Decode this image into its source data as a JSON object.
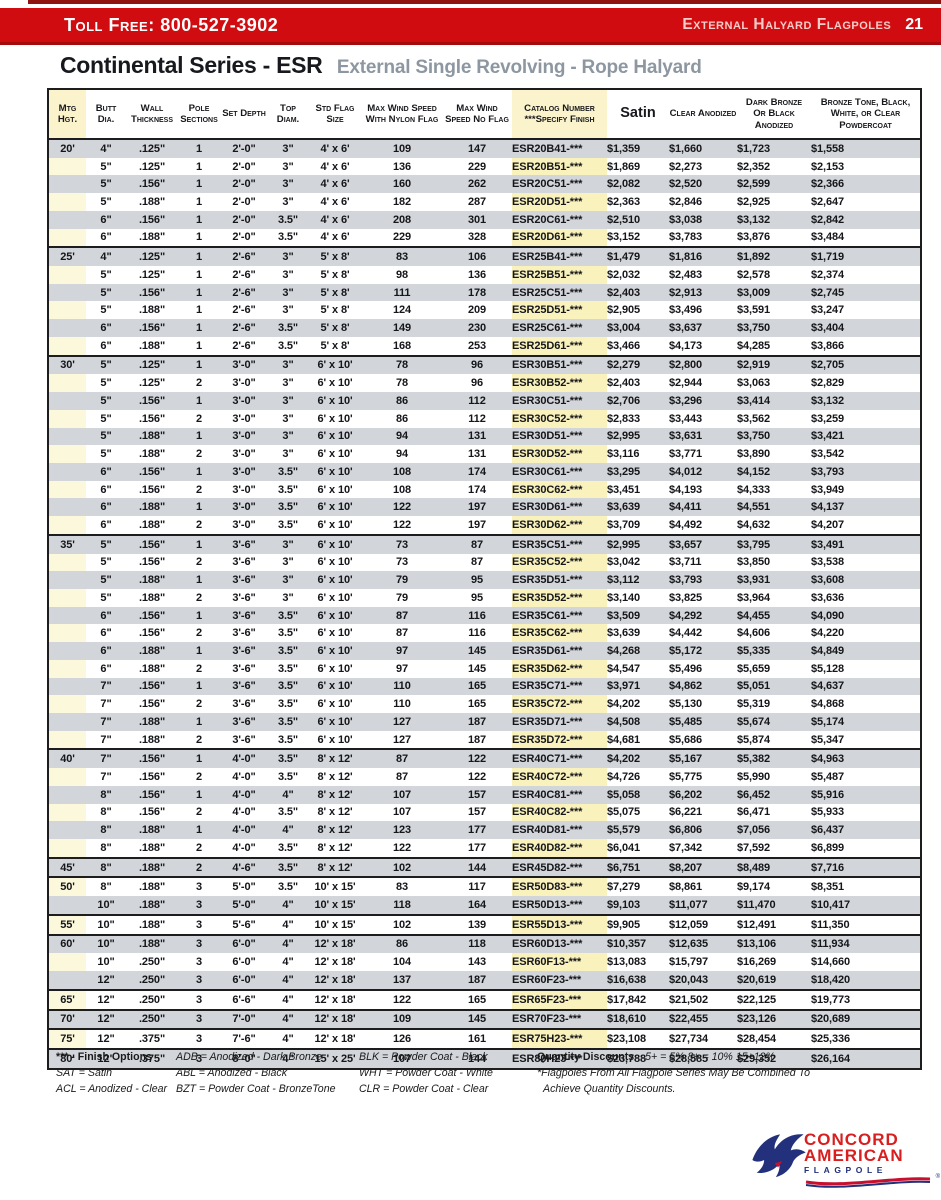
{
  "header_bar": {
    "toll_free": "Toll Free: 800-527-3902",
    "section_label": "External Halyard Flagpoles",
    "page_number": "21"
  },
  "title": {
    "main": "Continental Series - ESR",
    "subtitle": "External Single Revolving - Rope Halyard"
  },
  "colors": {
    "bar_red": "#d00c10",
    "row_gray": "#d2d5d9",
    "mtg_yellow": "#fcf8db",
    "catalog_yellow": "#faf2bc",
    "header_yellow": "#fbf3cc",
    "logo_red": "#d81e1e",
    "logo_navy": "#23307c"
  },
  "table": {
    "columns": [
      {
        "id": "mtg",
        "lines": [
          "Mtg",
          "Hgt."
        ],
        "highlight": true
      },
      {
        "id": "butt",
        "lines": [
          "Butt",
          "Dia."
        ]
      },
      {
        "id": "wall",
        "lines": [
          "Wall",
          "Thickness"
        ]
      },
      {
        "id": "pole",
        "lines": [
          "Pole",
          "Sections"
        ]
      },
      {
        "id": "depth",
        "lines": [
          "Set Depth"
        ]
      },
      {
        "id": "top",
        "lines": [
          "Top",
          "Diam."
        ]
      },
      {
        "id": "flag",
        "lines": [
          "Std Flag",
          "Size"
        ]
      },
      {
        "id": "wind_nylon",
        "lines": [
          "Max Wind Speed",
          "With Nylon Flag"
        ]
      },
      {
        "id": "wind_noflag",
        "lines": [
          "Max Wind",
          "Speed No Flag"
        ]
      },
      {
        "id": "catalog",
        "lines": [
          "Catalog Number",
          "***Specify Finish"
        ],
        "highlight": true
      },
      {
        "id": "satin",
        "lines": [
          "Satin"
        ],
        "big": true
      },
      {
        "id": "clear",
        "lines": [
          "Clear Anodized"
        ]
      },
      {
        "id": "dark",
        "lines": [
          "Dark Bronze",
          "Or Black",
          "Anodized"
        ]
      },
      {
        "id": "powder",
        "lines": [
          "Bronze Tone, Black,",
          "White, or Clear",
          "Powdercoat"
        ]
      }
    ],
    "sections": [
      {
        "height": "20'",
        "rows": [
          [
            "4\"",
            ".125\"",
            "1",
            "2'-0\"",
            "3\"",
            "4' x 6'",
            "109",
            "147",
            "ESR20B41-***",
            "$1,359",
            "$1,660",
            "$1,723",
            "$1,558"
          ],
          [
            "5\"",
            ".125\"",
            "1",
            "2'-0\"",
            "3\"",
            "4' x 6'",
            "136",
            "229",
            "ESR20B51-***",
            "$1,869",
            "$2,273",
            "$2,352",
            "$2,153"
          ],
          [
            "5\"",
            ".156\"",
            "1",
            "2'-0\"",
            "3\"",
            "4' x 6'",
            "160",
            "262",
            "ESR20C51-***",
            "$2,082",
            "$2,520",
            "$2,599",
            "$2,366"
          ],
          [
            "5\"",
            ".188\"",
            "1",
            "2'-0\"",
            "3\"",
            "4' x 6'",
            "182",
            "287",
            "ESR20D51-***",
            "$2,363",
            "$2,846",
            "$2,925",
            "$2,647"
          ],
          [
            "6\"",
            ".156\"",
            "1",
            "2'-0\"",
            "3.5\"",
            "4' x 6'",
            "208",
            "301",
            "ESR20C61-***",
            "$2,510",
            "$3,038",
            "$3,132",
            "$2,842"
          ],
          [
            "6\"",
            ".188\"",
            "1",
            "2'-0\"",
            "3.5\"",
            "4' x 6'",
            "229",
            "328",
            "ESR20D61-***",
            "$3,152",
            "$3,783",
            "$3,876",
            "$3,484"
          ]
        ]
      },
      {
        "height": "25'",
        "rows": [
          [
            "4\"",
            ".125\"",
            "1",
            "2'-6\"",
            "3\"",
            "5' x 8'",
            "83",
            "106",
            "ESR25B41-***",
            "$1,479",
            "$1,816",
            "$1,892",
            "$1,719"
          ],
          [
            "5\"",
            ".125\"",
            "1",
            "2'-6\"",
            "3\"",
            "5' x 8'",
            "98",
            "136",
            "ESR25B51-***",
            "$2,032",
            "$2,483",
            "$2,578",
            "$2,374"
          ],
          [
            "5\"",
            ".156\"",
            "1",
            "2'-6\"",
            "3\"",
            "5' x 8'",
            "111",
            "178",
            "ESR25C51-***",
            "$2,403",
            "$2,913",
            "$3,009",
            "$2,745"
          ],
          [
            "5\"",
            ".188\"",
            "1",
            "2'-6\"",
            "3\"",
            "5' x 8'",
            "124",
            "209",
            "ESR25D51-***",
            "$2,905",
            "$3,496",
            "$3,591",
            "$3,247"
          ],
          [
            "6\"",
            ".156\"",
            "1",
            "2'-6\"",
            "3.5\"",
            "5' x 8'",
            "149",
            "230",
            "ESR25C61-***",
            "$3,004",
            "$3,637",
            "$3,750",
            "$3,404"
          ],
          [
            "6\"",
            ".188\"",
            "1",
            "2'-6\"",
            "3.5\"",
            "5' x 8'",
            "168",
            "253",
            "ESR25D61-***",
            "$3,466",
            "$4,173",
            "$4,285",
            "$3,866"
          ]
        ]
      },
      {
        "height": "30'",
        "rows": [
          [
            "5\"",
            ".125\"",
            "1",
            "3'-0\"",
            "3\"",
            "6' x 10'",
            "78",
            "96",
            "ESR30B51-***",
            "$2,279",
            "$2,800",
            "$2,919",
            "$2,705"
          ],
          [
            "5\"",
            ".125\"",
            "2",
            "3'-0\"",
            "3\"",
            "6' x 10'",
            "78",
            "96",
            "ESR30B52-***",
            "$2,403",
            "$2,944",
            "$3,063",
            "$2,829"
          ],
          [
            "5\"",
            ".156\"",
            "1",
            "3'-0\"",
            "3\"",
            "6' x 10'",
            "86",
            "112",
            "ESR30C51-***",
            "$2,706",
            "$3,296",
            "$3,414",
            "$3,132"
          ],
          [
            "5\"",
            ".156\"",
            "2",
            "3'-0\"",
            "3\"",
            "6' x 10'",
            "86",
            "112",
            "ESR30C52-***",
            "$2,833",
            "$3,443",
            "$3,562",
            "$3,259"
          ],
          [
            "5\"",
            ".188\"",
            "1",
            "3'-0\"",
            "3\"",
            "6' x 10'",
            "94",
            "131",
            "ESR30D51-***",
            "$2,995",
            "$3,631",
            "$3,750",
            "$3,421"
          ],
          [
            "5\"",
            ".188\"",
            "2",
            "3'-0\"",
            "3\"",
            "6' x 10'",
            "94",
            "131",
            "ESR30D52-***",
            "$3,116",
            "$3,771",
            "$3,890",
            "$3,542"
          ],
          [
            "6\"",
            ".156\"",
            "1",
            "3'-0\"",
            "3.5\"",
            "6' x 10'",
            "108",
            "174",
            "ESR30C61-***",
            "$3,295",
            "$4,012",
            "$4,152",
            "$3,793"
          ],
          [
            "6\"",
            ".156\"",
            "2",
            "3'-0\"",
            "3.5\"",
            "6' x 10'",
            "108",
            "174",
            "ESR30C62-***",
            "$3,451",
            "$4,193",
            "$4,333",
            "$3,949"
          ],
          [
            "6\"",
            ".188\"",
            "1",
            "3'-0\"",
            "3.5\"",
            "6' x 10'",
            "122",
            "197",
            "ESR30D61-***",
            "$3,639",
            "$4,411",
            "$4,551",
            "$4,137"
          ],
          [
            "6\"",
            ".188\"",
            "2",
            "3'-0\"",
            "3.5\"",
            "6' x 10'",
            "122",
            "197",
            "ESR30D62-***",
            "$3,709",
            "$4,492",
            "$4,632",
            "$4,207"
          ]
        ]
      },
      {
        "height": "35'",
        "rows": [
          [
            "5\"",
            ".156\"",
            "1",
            "3'-6\"",
            "3\"",
            "6' x 10'",
            "73",
            "87",
            "ESR35C51-***",
            "$2,995",
            "$3,657",
            "$3,795",
            "$3,491"
          ],
          [
            "5\"",
            ".156\"",
            "2",
            "3'-6\"",
            "3\"",
            "6' x 10'",
            "73",
            "87",
            "ESR35C52-***",
            "$3,042",
            "$3,711",
            "$3,850",
            "$3,538"
          ],
          [
            "5\"",
            ".188\"",
            "1",
            "3'-6\"",
            "3\"",
            "6' x 10'",
            "79",
            "95",
            "ESR35D51-***",
            "$3,112",
            "$3,793",
            "$3,931",
            "$3,608"
          ],
          [
            "5\"",
            ".188\"",
            "2",
            "3'-6\"",
            "3\"",
            "6' x 10'",
            "79",
            "95",
            "ESR35D52-***",
            "$3,140",
            "$3,825",
            "$3,964",
            "$3,636"
          ],
          [
            "6\"",
            ".156\"",
            "1",
            "3'-6\"",
            "3.5\"",
            "6' x 10'",
            "87",
            "116",
            "ESR35C61-***",
            "$3,509",
            "$4,292",
            "$4,455",
            "$4,090"
          ],
          [
            "6\"",
            ".156\"",
            "2",
            "3'-6\"",
            "3.5\"",
            "6' x 10'",
            "87",
            "116",
            "ESR35C62-***",
            "$3,639",
            "$4,442",
            "$4,606",
            "$4,220"
          ],
          [
            "6\"",
            ".188\"",
            "1",
            "3'-6\"",
            "3.5\"",
            "6' x 10'",
            "97",
            "145",
            "ESR35D61-***",
            "$4,268",
            "$5,172",
            "$5,335",
            "$4,849"
          ],
          [
            "6\"",
            ".188\"",
            "2",
            "3'-6\"",
            "3.5\"",
            "6' x 10'",
            "97",
            "145",
            "ESR35D62-***",
            "$4,547",
            "$5,496",
            "$5,659",
            "$5,128"
          ],
          [
            "7\"",
            ".156\"",
            "1",
            "3'-6\"",
            "3.5\"",
            "6' x 10'",
            "110",
            "165",
            "ESR35C71-***",
            "$3,971",
            "$4,862",
            "$5,051",
            "$4,637"
          ],
          [
            "7\"",
            ".156\"",
            "2",
            "3'-6\"",
            "3.5\"",
            "6' x 10'",
            "110",
            "165",
            "ESR35C72-***",
            "$4,202",
            "$5,130",
            "$5,319",
            "$4,868"
          ],
          [
            "7\"",
            ".188\"",
            "1",
            "3'-6\"",
            "3.5\"",
            "6' x 10'",
            "127",
            "187",
            "ESR35D71-***",
            "$4,508",
            "$5,485",
            "$5,674",
            "$5,174"
          ],
          [
            "7\"",
            ".188\"",
            "2",
            "3'-6\"",
            "3.5\"",
            "6' x 10'",
            "127",
            "187",
            "ESR35D72-***",
            "$4,681",
            "$5,686",
            "$5,874",
            "$5,347"
          ]
        ]
      },
      {
        "height": "40'",
        "rows": [
          [
            "7\"",
            ".156\"",
            "1",
            "4'-0\"",
            "3.5\"",
            "8' x 12'",
            "87",
            "122",
            "ESR40C71-***",
            "$4,202",
            "$5,167",
            "$5,382",
            "$4,963"
          ],
          [
            "7\"",
            ".156\"",
            "2",
            "4'-0\"",
            "3.5\"",
            "8' x 12'",
            "87",
            "122",
            "ESR40C72-***",
            "$4,726",
            "$5,775",
            "$5,990",
            "$5,487"
          ],
          [
            "8\"",
            ".156\"",
            "1",
            "4'-0\"",
            "4\"",
            "8' x 12'",
            "107",
            "157",
            "ESR40C81-***",
            "$5,058",
            "$6,202",
            "$6,452",
            "$5,916"
          ],
          [
            "8\"",
            ".156\"",
            "2",
            "4'-0\"",
            "3.5\"",
            "8' x 12'",
            "107",
            "157",
            "ESR40C82-***",
            "$5,075",
            "$6,221",
            "$6,471",
            "$5,933"
          ],
          [
            "8\"",
            ".188\"",
            "1",
            "4'-0\"",
            "4\"",
            "8' x 12'",
            "123",
            "177",
            "ESR40D81-***",
            "$5,579",
            "$6,806",
            "$7,056",
            "$6,437"
          ],
          [
            "8\"",
            ".188\"",
            "2",
            "4'-0\"",
            "3.5\"",
            "8' x 12'",
            "122",
            "177",
            "ESR40D82-***",
            "$6,041",
            "$7,342",
            "$7,592",
            "$6,899"
          ]
        ]
      },
      {
        "height": "45'",
        "rows": [
          [
            "8\"",
            ".188\"",
            "2",
            "4'-6\"",
            "3.5\"",
            "8' x 12'",
            "102",
            "144",
            "ESR45D82-***",
            "$6,751",
            "$8,207",
            "$8,489",
            "$7,716"
          ]
        ]
      },
      {
        "height": "50'",
        "rows": [
          [
            "8\"",
            ".188\"",
            "3",
            "5'-0\"",
            "3.5\"",
            "10' x 15'",
            "83",
            "117",
            "ESR50D83-***",
            "$7,279",
            "$8,861",
            "$9,174",
            "$8,351"
          ],
          [
            "10\"",
            ".188\"",
            "3",
            "5'-0\"",
            "4\"",
            "10' x 15'",
            "118",
            "164",
            "ESR50D13-***",
            "$9,103",
            "$11,077",
            "$11,470",
            "$10,417"
          ]
        ]
      },
      {
        "height": "55'",
        "rows": [
          [
            "10\"",
            ".188\"",
            "3",
            "5'-6\"",
            "4\"",
            "10' x 15'",
            "102",
            "139",
            "ESR55D13-***",
            "$9,905",
            "$12,059",
            "$12,491",
            "$11,350"
          ]
        ]
      },
      {
        "height": "60'",
        "rows": [
          [
            "10\"",
            ".188\"",
            "3",
            "6'-0\"",
            "4\"",
            "12' x 18'",
            "86",
            "118",
            "ESR60D13-***",
            "$10,357",
            "$12,635",
            "$13,106",
            "$11,934"
          ],
          [
            "10\"",
            ".250\"",
            "3",
            "6'-0\"",
            "4\"",
            "12' x 18'",
            "104",
            "143",
            "ESR60F13-***",
            "$13,083",
            "$15,797",
            "$16,269",
            "$14,660"
          ],
          [
            "12\"",
            ".250\"",
            "3",
            "6'-0\"",
            "4\"",
            "12' x 18'",
            "137",
            "187",
            "ESR60F23-***",
            "$16,638",
            "$20,043",
            "$20,619",
            "$18,420"
          ]
        ]
      },
      {
        "height": "65'",
        "rows": [
          [
            "12\"",
            ".250\"",
            "3",
            "6'-6\"",
            "4\"",
            "12' x 18'",
            "122",
            "165",
            "ESR65F23-***",
            "$17,842",
            "$21,502",
            "$22,125",
            "$19,773"
          ]
        ]
      },
      {
        "height": "70'",
        "rows": [
          [
            "12\"",
            ".250\"",
            "3",
            "7'-0\"",
            "4\"",
            "12' x 18'",
            "109",
            "145",
            "ESR70F23-***",
            "$18,610",
            "$22,455",
            "$23,126",
            "$20,689"
          ]
        ]
      },
      {
        "height": "75'",
        "rows": [
          [
            "12\"",
            ".375\"",
            "3",
            "7'-6\"",
            "4\"",
            "12' x 18'",
            "126",
            "161",
            "ESR75H23-***",
            "$23,108",
            "$27,734",
            "$28,454",
            "$25,336"
          ]
        ]
      },
      {
        "height": "80'",
        "rows": [
          [
            "12\"",
            ".375\"",
            "3",
            "8'-0\"",
            "4\"",
            "15' x 25'",
            "107",
            "144",
            "ESR80H23-***",
            "$23,788",
            "$28,585",
            "$29,352",
            "$26,164"
          ]
        ]
      }
    ]
  },
  "legend": {
    "finish_title": "*** - Finish Options",
    "col1": [
      "SAT = Satin",
      "ACL = Anodized - Clear"
    ],
    "col2": [
      "ADB = Anodized - Dark Bronze",
      "ABL = Anodized - Black",
      "BZT = Powder Coat - BronzeTone"
    ],
    "col3": [
      "BLK = Powder Coat - Black",
      "WHT = Powder Coat - White",
      "CLR = Powder Coat - Clear"
    ],
    "discounts_title": "Quantity Discounts",
    "discounts_values": "5+ =  5%   8+ = 10%   15+12%",
    "discounts_note1": "*Flagpoles From All Flagpole Series May Be Combined To",
    "discounts_note2": "Achieve Quantity Discounts."
  },
  "logo": {
    "line1": "CONCORD",
    "line2": "AMERICAN",
    "line3": "FLAGPOLE"
  }
}
